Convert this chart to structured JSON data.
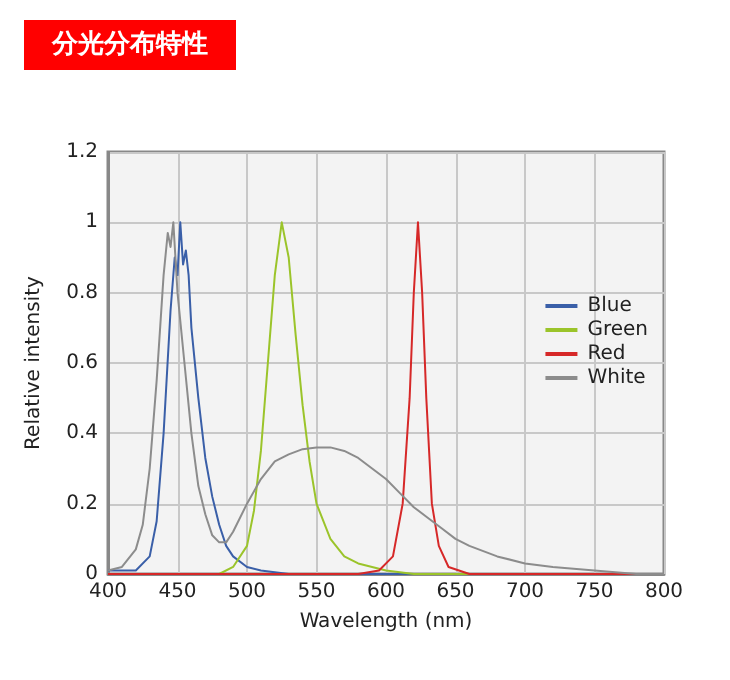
{
  "chart_data": {
    "type": "line",
    "title": "分光分布特性",
    "xlabel": "Wavelength (nm)",
    "ylabel": "Relative intensity",
    "xlim": [
      400,
      800
    ],
    "xticks": [
      400,
      450,
      500,
      550,
      600,
      650,
      700,
      750,
      800
    ],
    "ylim": [
      0,
      1.2
    ],
    "yticks": [
      0,
      0.2,
      0.4,
      0.6,
      0.8,
      1,
      1.2
    ],
    "grid": true,
    "legend": "right",
    "marker": "none",
    "line_style": "solid",
    "series": [
      {
        "name": "Blue",
        "color": "#3a5fa8",
        "x": [
          400,
          420,
          430,
          435,
          440,
          445,
          448,
          450,
          452,
          454,
          456,
          458,
          460,
          465,
          470,
          475,
          480,
          485,
          490,
          500,
          510,
          530,
          800
        ],
        "values": [
          0.01,
          0.01,
          0.05,
          0.15,
          0.4,
          0.75,
          0.9,
          0.85,
          1.0,
          0.88,
          0.92,
          0.85,
          0.7,
          0.5,
          0.33,
          0.22,
          0.14,
          0.08,
          0.05,
          0.02,
          0.01,
          0,
          0
        ]
      },
      {
        "name": "Green",
        "color": "#9bc42a",
        "x": [
          400,
          480,
          490,
          500,
          505,
          510,
          515,
          520,
          525,
          530,
          535,
          540,
          545,
          550,
          560,
          570,
          580,
          600,
          620,
          800
        ],
        "values": [
          0,
          0,
          0.02,
          0.08,
          0.18,
          0.35,
          0.6,
          0.85,
          1.0,
          0.9,
          0.68,
          0.48,
          0.32,
          0.2,
          0.1,
          0.05,
          0.03,
          0.01,
          0,
          0
        ]
      },
      {
        "name": "Red",
        "color": "#d62828",
        "x": [
          400,
          580,
          595,
          605,
          612,
          617,
          620,
          623,
          626,
          629,
          633,
          638,
          645,
          660,
          800
        ],
        "values": [
          0,
          0,
          0.01,
          0.05,
          0.2,
          0.5,
          0.8,
          1.0,
          0.8,
          0.5,
          0.2,
          0.08,
          0.02,
          0,
          0
        ]
      },
      {
        "name": "White",
        "color": "#8c8c8c",
        "x": [
          400,
          410,
          420,
          425,
          430,
          435,
          440,
          443,
          445,
          447,
          450,
          455,
          460,
          465,
          470,
          475,
          480,
          485,
          490,
          500,
          510,
          520,
          530,
          540,
          550,
          560,
          570,
          580,
          590,
          600,
          610,
          620,
          630,
          640,
          650,
          660,
          680,
          700,
          720,
          750,
          780,
          800
        ],
        "values": [
          0.01,
          0.02,
          0.07,
          0.14,
          0.3,
          0.55,
          0.85,
          0.97,
          0.93,
          1.0,
          0.8,
          0.6,
          0.4,
          0.25,
          0.17,
          0.11,
          0.09,
          0.09,
          0.12,
          0.2,
          0.27,
          0.32,
          0.34,
          0.355,
          0.36,
          0.36,
          0.35,
          0.33,
          0.3,
          0.27,
          0.23,
          0.19,
          0.16,
          0.13,
          0.1,
          0.08,
          0.05,
          0.03,
          0.02,
          0.01,
          0,
          0
        ]
      }
    ]
  }
}
